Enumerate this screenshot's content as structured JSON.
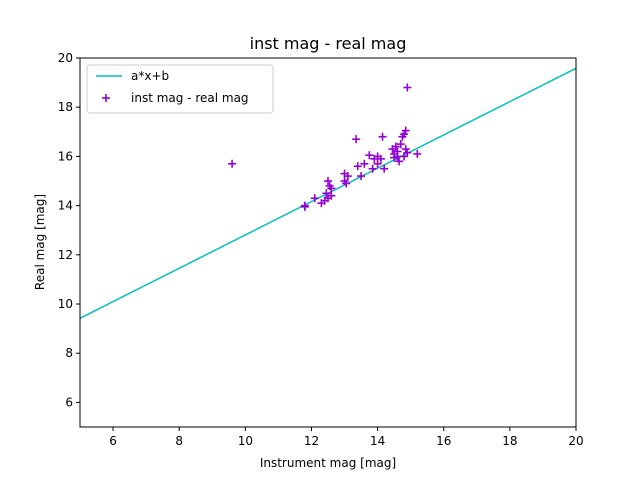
{
  "chart_data": {
    "type": "scatter",
    "title": "inst mag - real mag",
    "xlabel": "Instrument mag [mag]",
    "ylabel": "Real mag [mag]",
    "xlim": [
      5,
      20
    ],
    "ylim": [
      5,
      20
    ],
    "xticks": [
      6,
      8,
      10,
      12,
      14,
      16,
      18,
      20
    ],
    "yticks": [
      6,
      8,
      10,
      12,
      14,
      16,
      18,
      20
    ],
    "grid": false,
    "legend_placement": "top-left",
    "series": [
      {
        "name": "a*x+b",
        "kind": "line",
        "color": "#00bfbf",
        "x": [
          5,
          20
        ],
        "y": [
          9.42,
          19.58
        ]
      },
      {
        "name": "inst mag - real mag",
        "kind": "scatter",
        "marker": "+",
        "color": "#9400d3",
        "points": [
          [
            9.6,
            15.7
          ],
          [
            11.8,
            14.0
          ],
          [
            11.8,
            13.95
          ],
          [
            12.1,
            14.3
          ],
          [
            12.3,
            14.1
          ],
          [
            12.4,
            14.2
          ],
          [
            12.45,
            14.5
          ],
          [
            12.5,
            15.0
          ],
          [
            12.5,
            14.3
          ],
          [
            12.55,
            14.8
          ],
          [
            12.6,
            14.7
          ],
          [
            12.6,
            14.4
          ],
          [
            13.0,
            15.3
          ],
          [
            13.0,
            15.0
          ],
          [
            13.05,
            14.9
          ],
          [
            13.1,
            15.2
          ],
          [
            13.35,
            16.7
          ],
          [
            13.4,
            15.6
          ],
          [
            13.5,
            15.2
          ],
          [
            13.6,
            15.7
          ],
          [
            13.75,
            16.05
          ],
          [
            13.85,
            15.5
          ],
          [
            13.9,
            15.9
          ],
          [
            14.0,
            16.0
          ],
          [
            14.0,
            15.7
          ],
          [
            14.1,
            15.9
          ],
          [
            14.15,
            16.8
          ],
          [
            14.2,
            15.5
          ],
          [
            14.45,
            16.3
          ],
          [
            14.5,
            16.1
          ],
          [
            14.5,
            15.95
          ],
          [
            14.55,
            16.4
          ],
          [
            14.6,
            16.2
          ],
          [
            14.6,
            16.0
          ],
          [
            14.65,
            15.8
          ],
          [
            14.7,
            16.5
          ],
          [
            14.75,
            16.8
          ],
          [
            14.8,
            16.9
          ],
          [
            14.85,
            17.05
          ],
          [
            14.8,
            16.0
          ],
          [
            14.85,
            16.3
          ],
          [
            14.9,
            16.15
          ],
          [
            14.9,
            18.8
          ],
          [
            15.2,
            16.1
          ]
        ]
      }
    ]
  }
}
